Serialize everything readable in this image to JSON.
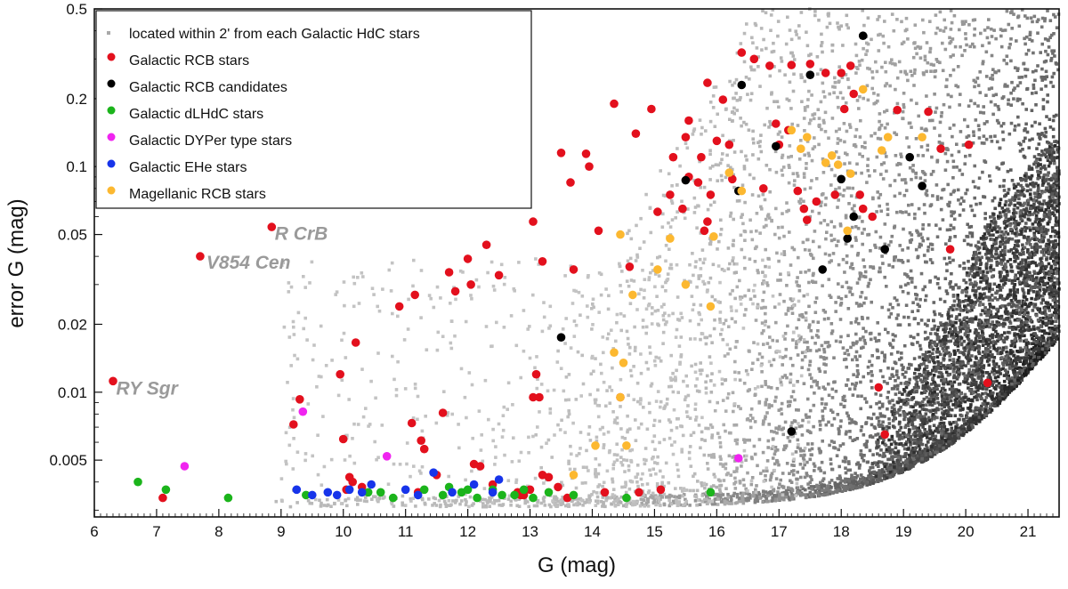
{
  "chart_data": {
    "type": "scatter",
    "title": "",
    "xlabel": "G (mag)",
    "ylabel": "error G (mag)",
    "xlim": [
      6.0,
      21.5
    ],
    "ylim": [
      0.0028,
      0.5
    ],
    "yscale": "log",
    "x_ticks": [
      6,
      7,
      8,
      9,
      10,
      11,
      12,
      13,
      14,
      15,
      16,
      17,
      18,
      19,
      20,
      21
    ],
    "y_ticks": [
      {
        "value": 0.005,
        "label": "0.005"
      },
      {
        "value": 0.01,
        "label": "0.01"
      },
      {
        "value": 0.02,
        "label": "0.02"
      },
      {
        "value": 0.05,
        "label": "0.05"
      },
      {
        "value": 0.1,
        "label": "0.1"
      },
      {
        "value": 0.2,
        "label": "0.2"
      },
      {
        "value": 0.5,
        "label": "0.5"
      }
    ],
    "legend_position": "top-left",
    "series": [
      {
        "name": "located within 2' from each Galactic HdC stars",
        "color": "#a9a9a9",
        "marker": "square",
        "density_sample": true,
        "points": []
      },
      {
        "name": "Galactic RCB stars",
        "color": "#e3101d",
        "points": [
          [
            6.3,
            0.0112
          ],
          [
            7.1,
            0.0034
          ],
          [
            7.7,
            0.04
          ],
          [
            8.85,
            0.054
          ],
          [
            9.2,
            0.0072
          ],
          [
            9.3,
            0.0093
          ],
          [
            9.95,
            0.012
          ],
          [
            10.0,
            0.0062
          ],
          [
            10.05,
            0.0037
          ],
          [
            10.1,
            0.0042
          ],
          [
            10.15,
            0.004
          ],
          [
            10.2,
            0.0166
          ],
          [
            10.3,
            0.0038
          ],
          [
            10.9,
            0.024
          ],
          [
            11.1,
            0.0073
          ],
          [
            11.15,
            0.027
          ],
          [
            11.2,
            0.0036
          ],
          [
            11.25,
            0.0061
          ],
          [
            11.3,
            0.0056
          ],
          [
            11.5,
            0.0043
          ],
          [
            11.6,
            0.0081
          ],
          [
            11.7,
            0.034
          ],
          [
            11.8,
            0.028
          ],
          [
            12.0,
            0.039
          ],
          [
            12.05,
            0.03
          ],
          [
            12.1,
            0.0048
          ],
          [
            12.2,
            0.0047
          ],
          [
            12.3,
            0.045
          ],
          [
            12.4,
            0.0039
          ],
          [
            12.5,
            0.033
          ],
          [
            12.8,
            0.0036
          ],
          [
            12.85,
            0.0035
          ],
          [
            12.9,
            0.0035
          ],
          [
            13.0,
            0.0037
          ],
          [
            13.05,
            0.0095
          ],
          [
            13.05,
            0.057
          ],
          [
            13.1,
            0.012
          ],
          [
            13.15,
            0.0095
          ],
          [
            13.2,
            0.038
          ],
          [
            13.2,
            0.0043
          ],
          [
            13.3,
            0.0042
          ],
          [
            13.45,
            0.0038
          ],
          [
            13.5,
            0.115
          ],
          [
            13.6,
            0.0034
          ],
          [
            13.65,
            0.085
          ],
          [
            13.7,
            0.035
          ],
          [
            13.9,
            0.114
          ],
          [
            13.95,
            0.1
          ],
          [
            14.1,
            0.052
          ],
          [
            14.2,
            0.0036
          ],
          [
            14.35,
            0.19
          ],
          [
            14.45,
            0.0095
          ],
          [
            14.6,
            0.036
          ],
          [
            14.7,
            0.14
          ],
          [
            14.75,
            0.0036
          ],
          [
            14.95,
            0.18
          ],
          [
            15.05,
            0.063
          ],
          [
            15.1,
            0.0037
          ],
          [
            15.25,
            0.075
          ],
          [
            15.3,
            0.11
          ],
          [
            15.45,
            0.065
          ],
          [
            15.5,
            0.135
          ],
          [
            15.55,
            0.16
          ],
          [
            15.55,
            0.09
          ],
          [
            15.7,
            0.085
          ],
          [
            15.75,
            0.11
          ],
          [
            15.8,
            0.052
          ],
          [
            15.85,
            0.235
          ],
          [
            15.85,
            0.057
          ],
          [
            15.9,
            0.075
          ],
          [
            16.0,
            0.13
          ],
          [
            16.1,
            0.198
          ],
          [
            16.2,
            0.125
          ],
          [
            16.25,
            0.088
          ],
          [
            16.4,
            0.32
          ],
          [
            16.6,
            0.3
          ],
          [
            16.75,
            0.08
          ],
          [
            16.85,
            0.28
          ],
          [
            16.95,
            0.155
          ],
          [
            17.0,
            0.125
          ],
          [
            17.15,
            0.145
          ],
          [
            17.2,
            0.282
          ],
          [
            17.3,
            0.078
          ],
          [
            17.4,
            0.065
          ],
          [
            17.45,
            0.058
          ],
          [
            17.5,
            0.285
          ],
          [
            17.6,
            0.07
          ],
          [
            17.75,
            0.26
          ],
          [
            17.9,
            0.075
          ],
          [
            18.0,
            0.26
          ],
          [
            18.05,
            0.18
          ],
          [
            18.15,
            0.28
          ],
          [
            18.2,
            0.21
          ],
          [
            18.3,
            0.075
          ],
          [
            18.35,
            0.065
          ],
          [
            18.5,
            0.06
          ],
          [
            18.6,
            0.0105
          ],
          [
            18.7,
            0.0065
          ],
          [
            18.9,
            0.178
          ],
          [
            19.4,
            0.175
          ],
          [
            19.6,
            0.12
          ],
          [
            20.05,
            0.125
          ],
          [
            19.75,
            0.043
          ],
          [
            20.35,
            0.011
          ]
        ]
      },
      {
        "name": "Galactic RCB candidates",
        "color": "#000000",
        "points": [
          [
            13.5,
            0.0175
          ],
          [
            15.5,
            0.087
          ],
          [
            16.35,
            0.078
          ],
          [
            16.4,
            0.23
          ],
          [
            16.95,
            0.123
          ],
          [
            17.5,
            0.255
          ],
          [
            17.2,
            0.0067
          ],
          [
            17.7,
            0.035
          ],
          [
            18.0,
            0.088
          ],
          [
            18.1,
            0.048
          ],
          [
            18.2,
            0.06
          ],
          [
            18.35,
            0.38
          ],
          [
            18.7,
            0.043
          ],
          [
            19.1,
            0.11
          ],
          [
            19.3,
            0.082
          ]
        ]
      },
      {
        "name": "Galactic dLHdC stars",
        "color": "#1bb41b",
        "points": [
          [
            6.7,
            0.004
          ],
          [
            7.15,
            0.0037
          ],
          [
            8.15,
            0.0034
          ],
          [
            9.4,
            0.0035
          ],
          [
            10.4,
            0.0036
          ],
          [
            10.6,
            0.0036
          ],
          [
            10.8,
            0.0034
          ],
          [
            11.3,
            0.0037
          ],
          [
            11.6,
            0.0035
          ],
          [
            11.7,
            0.0038
          ],
          [
            11.9,
            0.0036
          ],
          [
            12.0,
            0.0037
          ],
          [
            12.15,
            0.0034
          ],
          [
            12.4,
            0.0037
          ],
          [
            12.55,
            0.0035
          ],
          [
            12.75,
            0.0035
          ],
          [
            12.9,
            0.0037
          ],
          [
            13.05,
            0.0034
          ],
          [
            13.3,
            0.0036
          ],
          [
            13.7,
            0.0035
          ],
          [
            14.55,
            0.0034
          ],
          [
            15.9,
            0.0036
          ]
        ]
      },
      {
        "name": "Galactic DYPer type stars",
        "color": "#f024f0",
        "points": [
          [
            7.45,
            0.0047
          ],
          [
            9.35,
            0.0082
          ],
          [
            10.7,
            0.0052
          ],
          [
            16.35,
            0.0051
          ]
        ]
      },
      {
        "name": "Galactic EHe stars",
        "color": "#1734ea",
        "points": [
          [
            9.25,
            0.0037
          ],
          [
            9.5,
            0.0035
          ],
          [
            9.75,
            0.0036
          ],
          [
            9.9,
            0.0035
          ],
          [
            10.1,
            0.0037
          ],
          [
            10.3,
            0.0036
          ],
          [
            10.45,
            0.0039
          ],
          [
            11.0,
            0.0037
          ],
          [
            11.2,
            0.0035
          ],
          [
            11.45,
            0.0044
          ],
          [
            11.75,
            0.0036
          ],
          [
            12.1,
            0.0039
          ],
          [
            12.4,
            0.0036
          ],
          [
            12.5,
            0.0041
          ]
        ]
      },
      {
        "name": "Magellanic RCB stars",
        "color": "#fcb830",
        "points": [
          [
            13.7,
            0.0043
          ],
          [
            14.05,
            0.0058
          ],
          [
            14.35,
            0.015
          ],
          [
            14.45,
            0.0095
          ],
          [
            14.45,
            0.05
          ],
          [
            14.5,
            0.0135
          ],
          [
            14.55,
            0.0058
          ],
          [
            14.65,
            0.027
          ],
          [
            15.05,
            0.035
          ],
          [
            15.25,
            0.048
          ],
          [
            15.5,
            0.03
          ],
          [
            15.9,
            0.024
          ],
          [
            15.95,
            0.049
          ],
          [
            16.2,
            0.094
          ],
          [
            16.4,
            0.078
          ],
          [
            17.2,
            0.145
          ],
          [
            17.35,
            0.12
          ],
          [
            17.45,
            0.135
          ],
          [
            17.75,
            0.104
          ],
          [
            17.85,
            0.112
          ],
          [
            17.95,
            0.102
          ],
          [
            18.15,
            0.093
          ],
          [
            18.1,
            0.052
          ],
          [
            18.35,
            0.22
          ],
          [
            18.75,
            0.135
          ],
          [
            18.65,
            0.118
          ],
          [
            19.3,
            0.135
          ]
        ]
      }
    ],
    "annotations": [
      {
        "text": "R CrB",
        "x": 8.9,
        "y": 0.051
      },
      {
        "text": "V854 Cen",
        "x": 7.8,
        "y": 0.038
      },
      {
        "text": "RY Sgr",
        "x": 6.35,
        "y": 0.0105
      }
    ]
  }
}
